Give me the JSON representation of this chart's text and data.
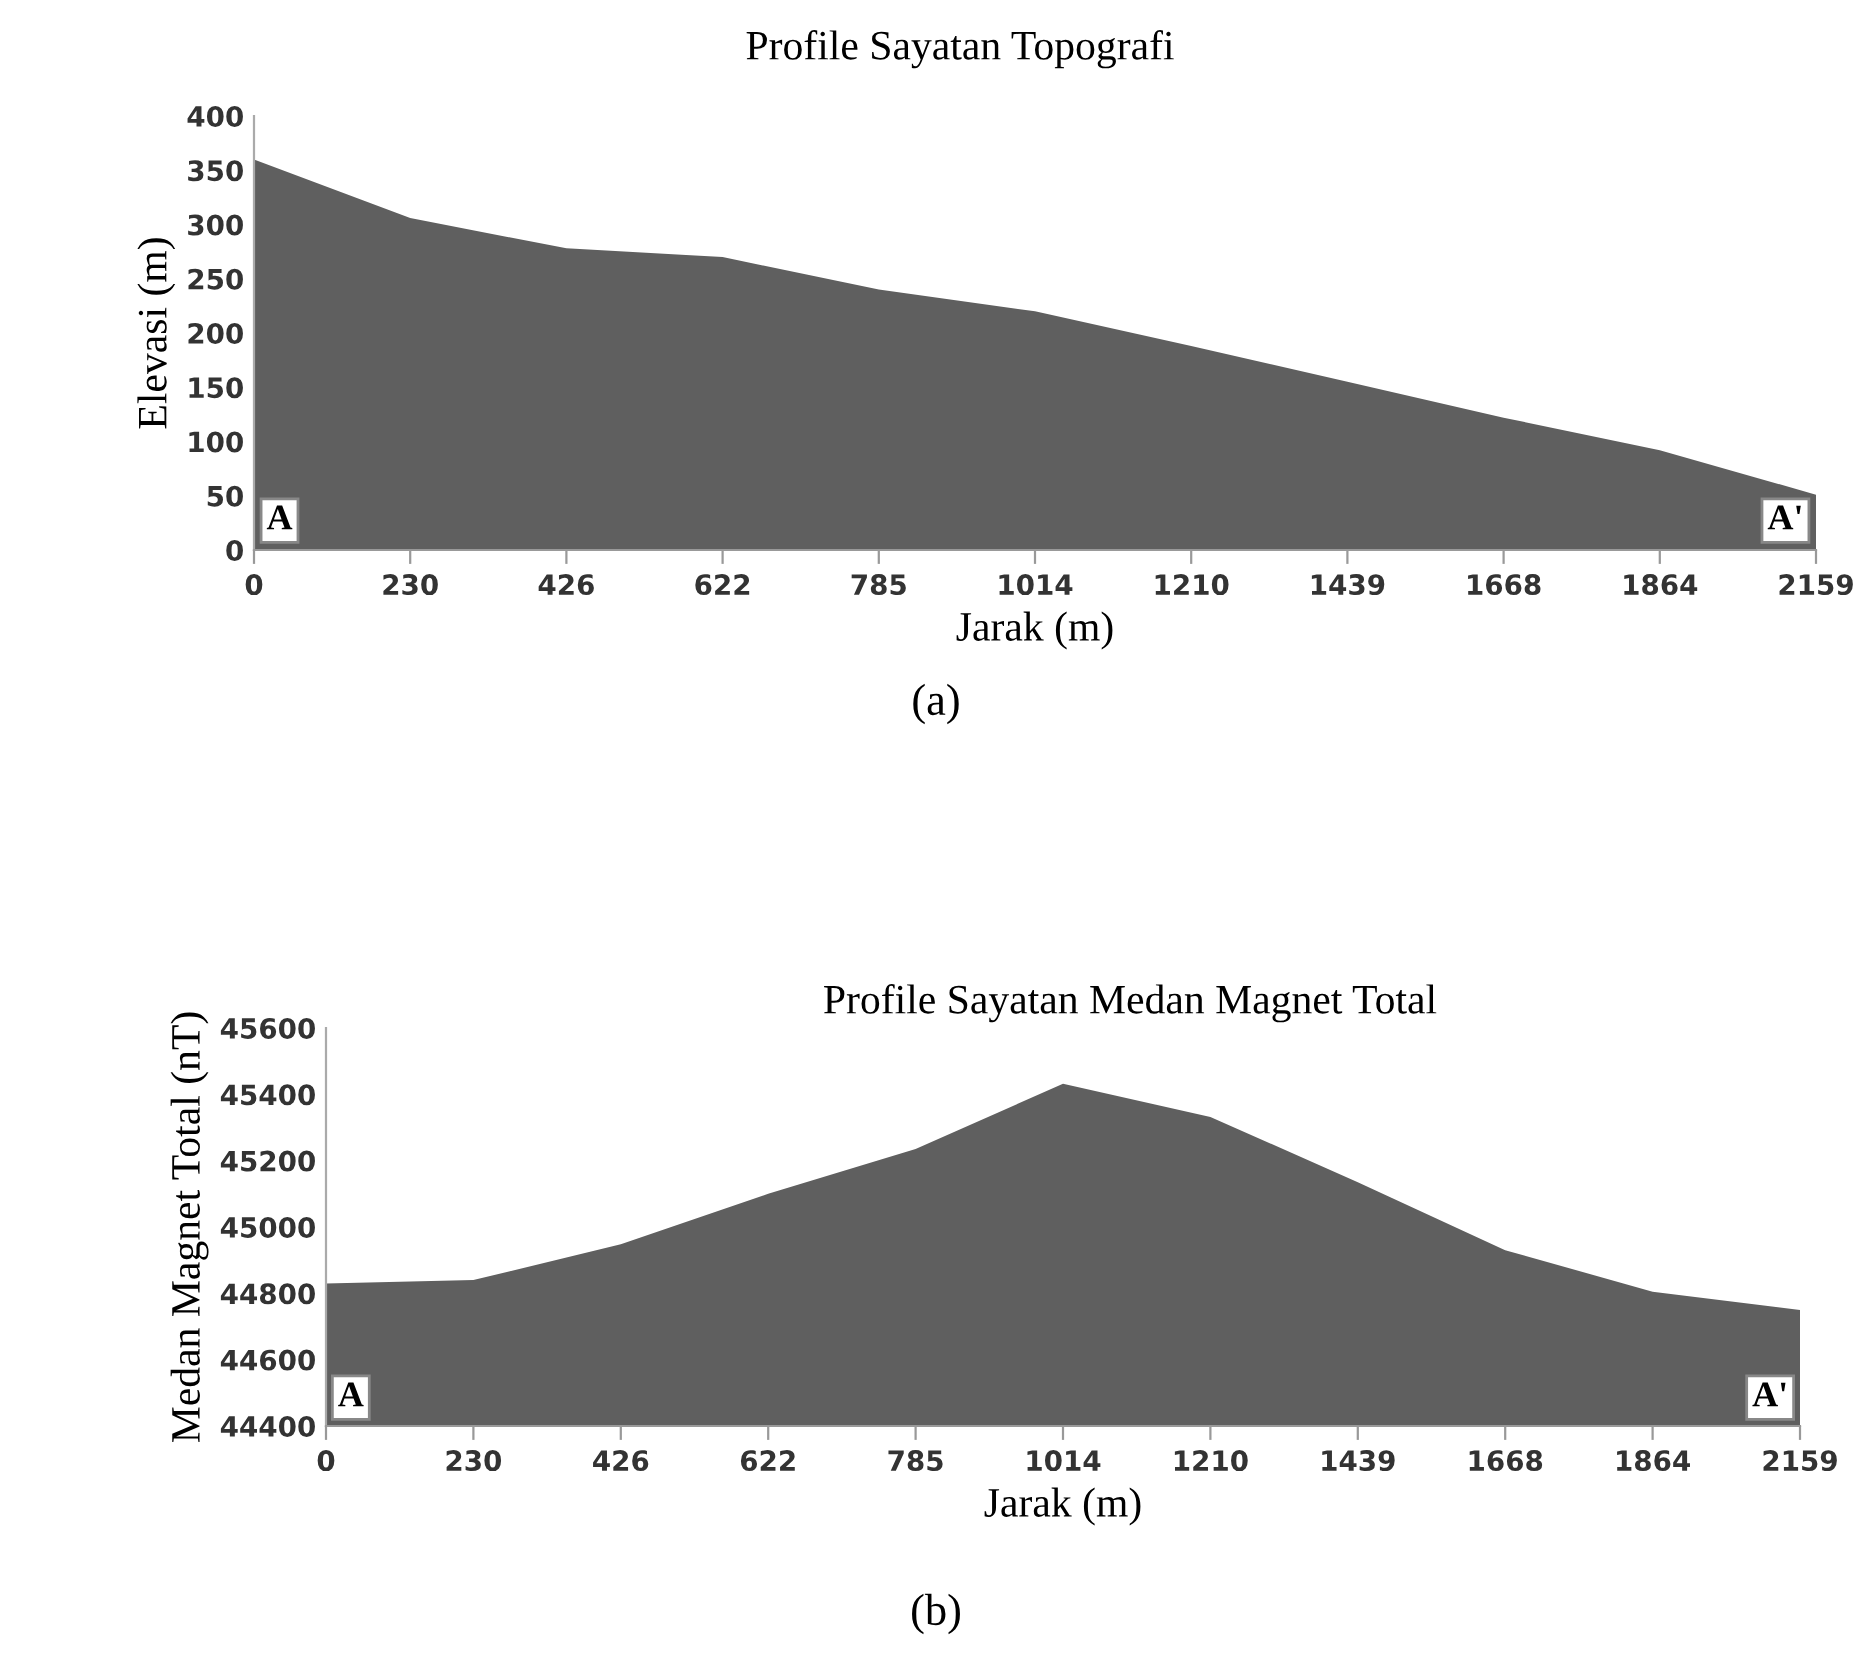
{
  "chart_data": [
    {
      "type": "area",
      "title": "Profile Sayatan Topografi",
      "xlabel": "Jarak (m)",
      "ylabel": "Elevasi (m)",
      "categories": [
        "0",
        "230",
        "426",
        "622",
        "785",
        "1014",
        "1210",
        "1439",
        "1668",
        "1864",
        "2159"
      ],
      "values": [
        360,
        306,
        278,
        270,
        240,
        220,
        188,
        155,
        122,
        92,
        51
      ],
      "color": "#5f5f5f",
      "ylim": [
        0,
        400
      ],
      "yticks": [
        0,
        50,
        100,
        150,
        200,
        250,
        300,
        350,
        400
      ],
      "grid": false,
      "legend": false,
      "annotations": [
        "A",
        "A'",
        "(a)"
      ]
    },
    {
      "type": "area",
      "title": "Profile Sayatan Medan Magnet Total",
      "xlabel": "Jarak (m)",
      "ylabel": "Medan Magnet Total (nT)",
      "categories": [
        "0",
        "230",
        "426",
        "622",
        "785",
        "1014",
        "1210",
        "1439",
        "1668",
        "1864",
        "2159"
      ],
      "values": [
        44830,
        44840,
        44948,
        45100,
        45235,
        45432,
        45332,
        45135,
        44930,
        44805,
        44750
      ],
      "color": "#5f5f5f",
      "ylim": [
        44400,
        45600
      ],
      "yticks": [
        44400,
        44600,
        44800,
        45000,
        45200,
        45400,
        45600
      ],
      "grid": false,
      "legend": false,
      "annotations": [
        "A",
        "A'",
        "(b)"
      ]
    }
  ]
}
